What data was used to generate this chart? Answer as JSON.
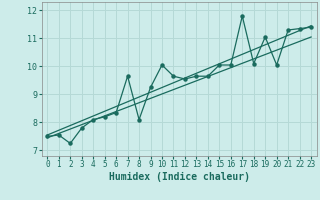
{
  "title": "",
  "xlabel": "Humidex (Indice chaleur)",
  "xlim": [
    -0.5,
    23.5
  ],
  "ylim": [
    6.8,
    12.3
  ],
  "xticks": [
    0,
    1,
    2,
    3,
    4,
    5,
    6,
    7,
    8,
    9,
    10,
    11,
    12,
    13,
    14,
    15,
    16,
    17,
    18,
    19,
    20,
    21,
    22,
    23
  ],
  "yticks": [
    7,
    8,
    9,
    10,
    11,
    12
  ],
  "bg_color": "#cdecea",
  "grid_color": "#b5d9d6",
  "line_color": "#1a6b5e",
  "line1_x": [
    0,
    1,
    2,
    3,
    4,
    5,
    6,
    7,
    8,
    9,
    10,
    11,
    12,
    13,
    14,
    15,
    16,
    17,
    18,
    19,
    20,
    21,
    22,
    23
  ],
  "line1_y": [
    7.5,
    7.55,
    7.25,
    7.8,
    8.1,
    8.2,
    8.35,
    9.65,
    8.1,
    9.25,
    10.05,
    9.65,
    9.55,
    9.65,
    9.65,
    10.05,
    10.05,
    11.8,
    10.1,
    11.05,
    10.05,
    11.3,
    11.35,
    11.4
  ],
  "line2_x": [
    0,
    23
  ],
  "line2_y": [
    7.45,
    11.05
  ],
  "line3_x": [
    0,
    23
  ],
  "line3_y": [
    7.55,
    11.45
  ],
  "xlabel_fontsize": 7,
  "tick_fontsize": 5.5,
  "ytick_fontsize": 6
}
